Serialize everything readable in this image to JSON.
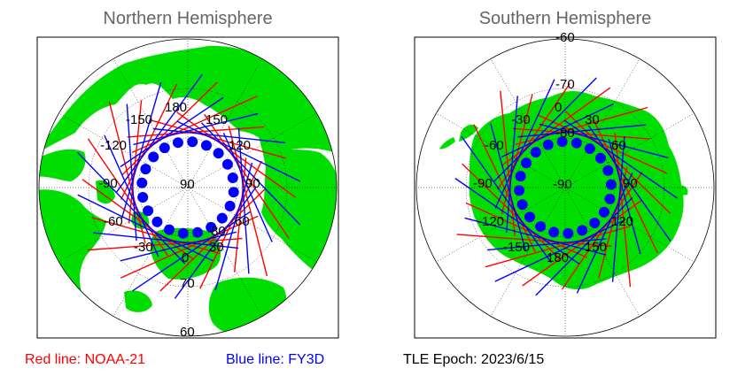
{
  "titles": {
    "north": "Northern Hemisphere",
    "south": "Southern Hemisphere"
  },
  "legend": {
    "red": "Red line: NOAA-21",
    "blue": "Blue line: FY3D",
    "epoch": "TLE Epoch: 2023/6/15"
  },
  "colors": {
    "land": "#00dd00",
    "noaa": "#ff0000",
    "fy3d": "#0000ff",
    "dots": "#0000ff",
    "grid": "#000000"
  },
  "north_labels": {
    "lon": [
      "-150",
      "180",
      "150",
      "-120",
      "120",
      "-90",
      "90",
      "-60",
      "60",
      "-30",
      "30",
      "0"
    ],
    "lat": [
      "90",
      "80",
      "70",
      "60"
    ]
  },
  "south_labels": {
    "lon": [
      "-30",
      "0",
      "30",
      "-60",
      "60",
      "-90",
      "90",
      "-120",
      "120",
      "-150",
      "150",
      "180"
    ],
    "lat": [
      "-90",
      "-80",
      "-70",
      "-60"
    ]
  },
  "chart_data": [
    {
      "type": "polar-map",
      "title": "Northern Hemisphere",
      "projection": "polar stereographic (north pole)",
      "lat_circles": [
        60,
        70,
        80
      ],
      "lon_ticks": [
        -150,
        -120,
        -90,
        -60,
        -30,
        0,
        30,
        60,
        90,
        120,
        150,
        180
      ],
      "series": [
        {
          "name": "NOAA-21",
          "color": "#ff0000",
          "passes": 18
        },
        {
          "name": "FY3D",
          "color": "#0000ff",
          "passes": 18
        }
      ],
      "pole_ring_points": 20
    },
    {
      "type": "polar-map",
      "title": "Southern Hemisphere",
      "projection": "polar stereographic (south pole)",
      "lat_circles": [
        -60,
        -70,
        -80
      ],
      "lon_ticks": [
        -150,
        -120,
        -90,
        -60,
        -30,
        0,
        30,
        60,
        90,
        120,
        150,
        180
      ],
      "series": [
        {
          "name": "NOAA-21",
          "color": "#ff0000",
          "passes": 18
        },
        {
          "name": "FY3D",
          "color": "#0000ff",
          "passes": 18
        }
      ],
      "pole_ring_points": 20
    }
  ]
}
